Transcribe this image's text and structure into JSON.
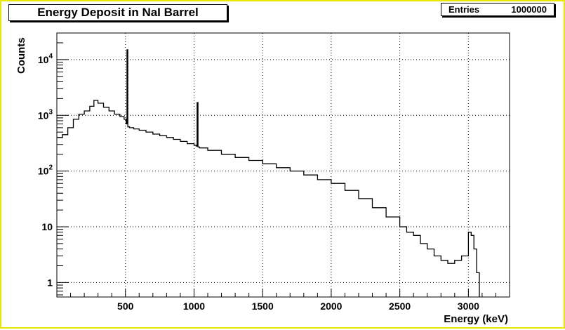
{
  "title": "Energy Deposit in NaI Barrel",
  "stats": {
    "label": "Entries",
    "value": "1000000"
  },
  "chart_data": {
    "type": "histogram",
    "xlabel": "Energy (keV)",
    "ylabel": "Counts",
    "xlim": [
      0,
      3300
    ],
    "ylim": [
      0.55,
      30000
    ],
    "yscale": "log",
    "grid": true,
    "x_tick_labels": [
      "500",
      "1000",
      "1500",
      "2000",
      "2500",
      "3000"
    ],
    "x_ticks": [
      500,
      1000,
      1500,
      2000,
      2500,
      3000
    ],
    "y_ticks": [
      {
        "value": 1,
        "label": "1",
        "exp": null
      },
      {
        "value": 10,
        "label": "10",
        "exp": null
      },
      {
        "value": 100,
        "label": "10",
        "exp": "2"
      },
      {
        "value": 1000,
        "label": "10",
        "exp": "3"
      },
      {
        "value": 10000,
        "label": "10",
        "exp": "4"
      }
    ],
    "series": [
      {
        "x": [
          0,
          40,
          80,
          120,
          160,
          200,
          240,
          270,
          300,
          340,
          380,
          420,
          460,
          490,
          505,
          511,
          517,
          530,
          560,
          600,
          650,
          700,
          750,
          800,
          850,
          900,
          950,
          1000,
          1015,
          1022,
          1029,
          1040,
          1100,
          1200,
          1300,
          1400,
          1500,
          1600,
          1700,
          1800,
          1900,
          2000,
          2100,
          2200,
          2300,
          2400,
          2500,
          2550,
          2600,
          2650,
          2700,
          2750,
          2800,
          2850,
          2900,
          2950,
          3000,
          3020,
          3040,
          3060,
          3080
        ],
        "y": [
          400,
          450,
          600,
          850,
          1050,
          1200,
          1450,
          1850,
          1650,
          1400,
          1200,
          1050,
          950,
          850,
          700,
          15000,
          620,
          600,
          570,
          540,
          500,
          460,
          430,
          400,
          370,
          340,
          310,
          290,
          280,
          1700,
          270,
          260,
          235,
          200,
          175,
          155,
          135,
          115,
          100,
          85,
          70,
          60,
          45,
          32,
          22,
          15,
          10,
          8,
          7,
          5,
          4,
          3,
          2.5,
          2.2,
          2.5,
          3,
          8,
          7,
          4,
          1.5,
          0.55
        ]
      }
    ]
  }
}
